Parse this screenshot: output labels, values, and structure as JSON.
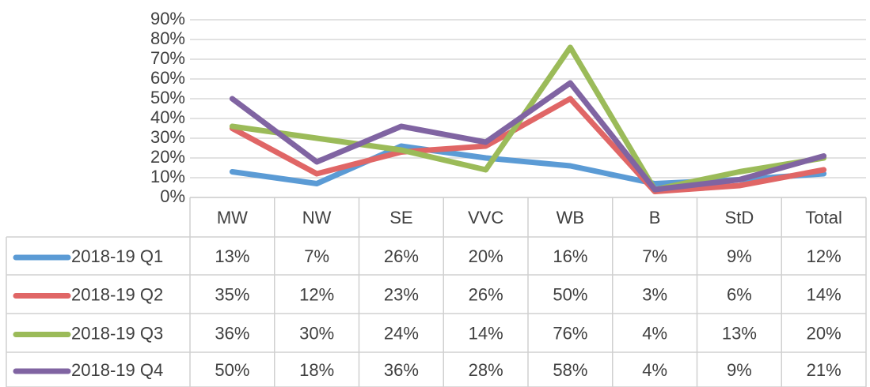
{
  "chart_data": {
    "type": "line",
    "categories": [
      "MW",
      "NW",
      "SE",
      "VVC",
      "WB",
      "B",
      "StD",
      "Total"
    ],
    "series": [
      {
        "name": "2018-19 Q1",
        "color": "#5b9bd5",
        "values": [
          13,
          7,
          26,
          20,
          16,
          7,
          9,
          12
        ],
        "value_labels": [
          "13%",
          "7%",
          "26%",
          "20%",
          "16%",
          "7%",
          "9%",
          "12%"
        ]
      },
      {
        "name": "2018-19 Q2",
        "color": "#e06666",
        "values": [
          35,
          12,
          23,
          26,
          50,
          3,
          6,
          14
        ],
        "value_labels": [
          "35%",
          "12%",
          "23%",
          "26%",
          "50%",
          "3%",
          "6%",
          "14%"
        ]
      },
      {
        "name": "2018-19 Q3",
        "color": "#9bbb59",
        "values": [
          36,
          30,
          24,
          14,
          76,
          4,
          13,
          20
        ],
        "value_labels": [
          "36%",
          "30%",
          "24%",
          "14%",
          "76%",
          "4%",
          "13%",
          "20%"
        ]
      },
      {
        "name": "2018-19 Q4",
        "color": "#8064a2",
        "values": [
          50,
          18,
          36,
          28,
          58,
          4,
          9,
          21
        ],
        "value_labels": [
          "50%",
          "18%",
          "36%",
          "28%",
          "58%",
          "4%",
          "9%",
          "21%"
        ]
      }
    ],
    "ylim": [
      0,
      90
    ],
    "yticks": [
      {
        "value": 0,
        "label": "0%"
      },
      {
        "value": 10,
        "label": "10%"
      },
      {
        "value": 20,
        "label": "20%"
      },
      {
        "value": 30,
        "label": "30%"
      },
      {
        "value": 40,
        "label": "40%"
      },
      {
        "value": 50,
        "label": "50%"
      },
      {
        "value": 60,
        "label": "60%"
      },
      {
        "value": 70,
        "label": "70%"
      },
      {
        "value": 80,
        "label": "80%"
      },
      {
        "value": 90,
        "label": "90%"
      }
    ],
    "grid": true
  }
}
